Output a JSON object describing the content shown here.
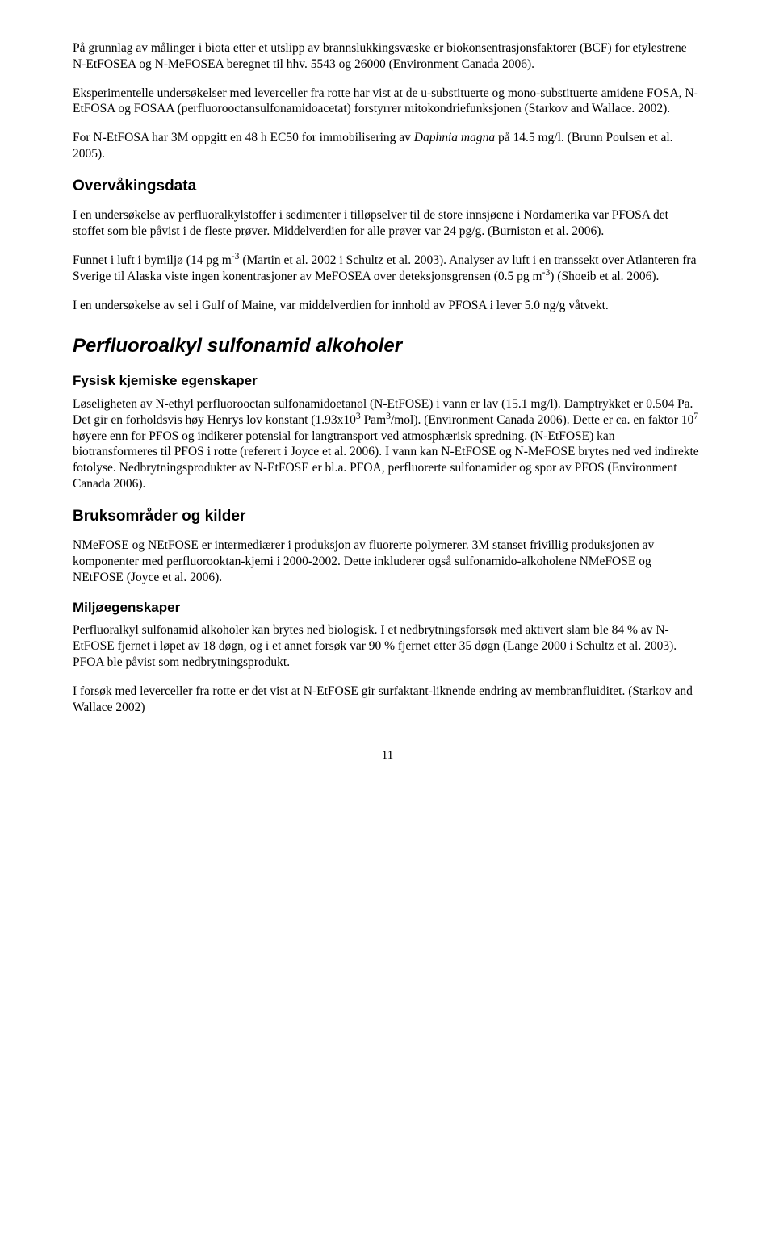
{
  "para1": "På grunnlag av målinger i biota etter et utslipp av brannslukkingsvæske er biokonsentrasjonsfaktorer (BCF) for etylestrene N-EtFOSEA og N-MeFOSEA beregnet til hhv. 5543 og 26000 (Environment Canada 2006).",
  "para2": "Eksperimentelle undersøkelser med leverceller fra rotte har vist at de u-substituerte og mono-substituerte amidene FOSA, N-EtFOSA og FOSAA  (perfluorooctansulfonamidoacetat) forstyrrer mitokondriefunksjonen (Starkov and Wallace. 2002).",
  "para3_pre": "For N-EtFOSA har 3M oppgitt en 48 h EC50 for immobilisering av ",
  "para3_it": "Daphnia magna",
  "para3_post": " på 14.5 mg/l. (Brunn Poulsen et al. 2005).",
  "h_overvak": "Overvåkingsdata",
  "para4": "I en undersøkelse av perfluoralkylstoffer i sedimenter i tilløpselver til de store innsjøene i Nordamerika var PFOSA det stoffet som ble påvist i de fleste prøver. Middelverdien for alle prøver var 24 pg/g. (Burniston et al. 2006).",
  "para5_a": "Funnet i luft i bymiljø (14 pg m",
  "para5_b": " (Martin et al. 2002 i Schultz et al. 2003). Analyser av luft i en transsekt over Atlanteren fra Sverige til Alaska viste ingen konentrasjoner av MeFOSEA over deteksjonsgrensen (0.5 pg m",
  "para5_c": ") (Shoeib et al. 2006).",
  "para6": "I en undersøkelse av sel i Gulf of Maine, var middelverdien for innhold av PFOSA i lever 5.0 ng/g våtvekt.",
  "h_main": "Perfluoroalkyl sulfonamid alkoholer",
  "h_fysisk": "Fysisk kjemiske egenskaper",
  "para7_a": "Løseligheten av N-ethyl perfluorooctan sulfonamidoetanol (N-EtFOSE) i vann er lav (15.1 mg/l). Damptrykket er 0.504 Pa. Det gir en forholdsvis høy Henrys lov konstant (1.93x10",
  "para7_b": " Pam",
  "para7_c": "/mol). (Environment Canada 2006). Dette er ca. en faktor 10",
  "para7_d": " høyere enn for PFOS og indikerer potensial for langtransport ved atmosphærisk spredning. (N-EtFOSE) kan biotransformeres til PFOS i rotte (referert i Joyce et al. 2006). I vann kan N-EtFOSE og N-MeFOSE brytes ned ved indirekte fotolyse. Nedbrytningsprodukter av N-EtFOSE er bl.a. PFOA, perfluorerte sulfonamider og spor av PFOS (Environment Canada 2006).",
  "h_bruk": "Bruksområder og kilder",
  "para8": "NMeFOSE og NEtFOSE er intermediærer i produksjon av fluorerte polymerer. 3M stanset frivillig produksjonen av komponenter med perfluorooktan-kjemi i 2000-2002. Dette inkluderer også sulfonamido-alkoholene NMeFOSE og NEtFOSE (Joyce et al. 2006).",
  "h_miljo": "Miljøegenskaper",
  "para9": "Perfluoralkyl sulfonamid alkoholer kan brytes ned biologisk. I et nedbrytningsforsøk med aktivert slam ble 84 % av N-EtFOSE fjernet i løpet av 18 døgn, og i et annet forsøk var 90 % fjernet etter 35 døgn (Lange 2000 i Schultz et al. 2003). PFOA ble påvist som nedbrytningsprodukt.",
  "para10": "I forsøk med leverceller fra rotte er det vist at N-EtFOSE gir surfaktant-liknende endring av membranfluiditet. (Starkov and Wallace 2002)",
  "pagenum": "11",
  "sup_m3": "-3",
  "sup_3": "3",
  "sup_7": "7"
}
